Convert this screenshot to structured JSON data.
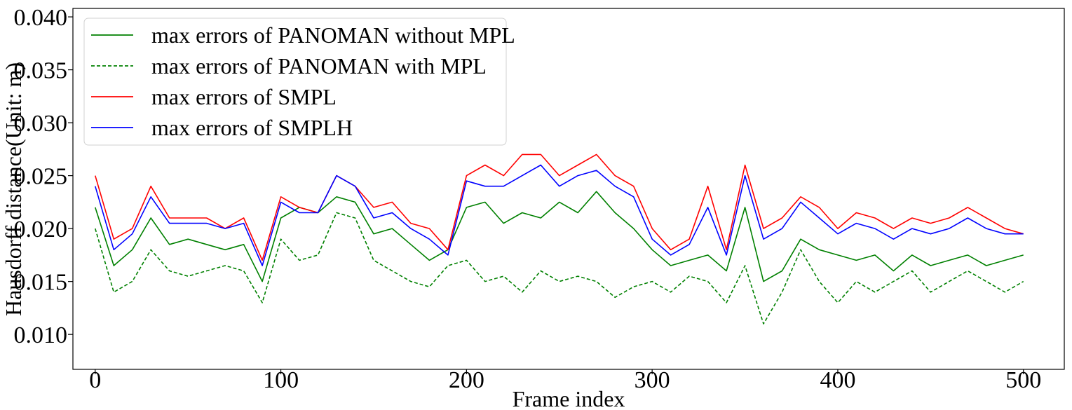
{
  "chart_data": {
    "type": "line",
    "title": "",
    "xlabel": "Frame index",
    "ylabel": "Hausdorff distance(Unit: m)",
    "xlim": [
      -12,
      522
    ],
    "ylim": [
      0.0067,
      0.0408
    ],
    "xticks": [
      0,
      100,
      200,
      300,
      400,
      500
    ],
    "xtick_labels": [
      "0",
      "100",
      "200",
      "300",
      "400",
      "500"
    ],
    "yticks": [
      0.01,
      0.015,
      0.02,
      0.025,
      0.03,
      0.035,
      0.04
    ],
    "ytick_labels": [
      "0.010",
      "0.015",
      "0.020",
      "0.025",
      "0.030",
      "0.035",
      "0.040"
    ],
    "grid": false,
    "legend_position": "upper-left",
    "legend": [
      "max errors of PANOMAN without MPL",
      "max errors of PANOMAN with MPL",
      "max errors of SMPL",
      "max errors of SMPLH"
    ],
    "series": [
      {
        "name": "max errors of PANOMAN without MPL",
        "color": "#008000",
        "style": "solid",
        "x": [
          0,
          10,
          20,
          30,
          40,
          50,
          60,
          70,
          80,
          90,
          100,
          110,
          120,
          130,
          140,
          150,
          160,
          170,
          180,
          190,
          200,
          210,
          220,
          230,
          240,
          250,
          260,
          270,
          280,
          290,
          300,
          310,
          320,
          330,
          340,
          350,
          360,
          370,
          380,
          390,
          400,
          410,
          420,
          430,
          440,
          450,
          460,
          470,
          480,
          490,
          500
        ],
        "values": [
          0.022,
          0.0165,
          0.018,
          0.021,
          0.0185,
          0.019,
          0.0185,
          0.018,
          0.0185,
          0.015,
          0.021,
          0.022,
          0.0215,
          0.023,
          0.0225,
          0.0195,
          0.02,
          0.0185,
          0.017,
          0.018,
          0.022,
          0.0225,
          0.0205,
          0.0215,
          0.021,
          0.0225,
          0.0215,
          0.0235,
          0.0215,
          0.02,
          0.018,
          0.0165,
          0.017,
          0.0175,
          0.016,
          0.022,
          0.015,
          0.016,
          0.019,
          0.018,
          0.0175,
          0.017,
          0.0175,
          0.016,
          0.0175,
          0.0165,
          0.017,
          0.0175,
          0.0165,
          0.017,
          0.0175
        ]
      },
      {
        "name": "max errors of PANOMAN with MPL",
        "color": "#008000",
        "style": "dashed",
        "x": [
          0,
          10,
          20,
          30,
          40,
          50,
          60,
          70,
          80,
          90,
          100,
          110,
          120,
          130,
          140,
          150,
          160,
          170,
          180,
          190,
          200,
          210,
          220,
          230,
          240,
          250,
          260,
          270,
          280,
          290,
          300,
          310,
          320,
          330,
          340,
          350,
          360,
          370,
          380,
          390,
          400,
          410,
          420,
          430,
          440,
          450,
          460,
          470,
          480,
          490,
          500
        ],
        "values": [
          0.02,
          0.014,
          0.015,
          0.018,
          0.016,
          0.0155,
          0.016,
          0.0165,
          0.016,
          0.013,
          0.019,
          0.017,
          0.0175,
          0.0215,
          0.021,
          0.017,
          0.016,
          0.015,
          0.0145,
          0.0165,
          0.017,
          0.015,
          0.0155,
          0.014,
          0.016,
          0.015,
          0.0155,
          0.015,
          0.0135,
          0.0145,
          0.015,
          0.014,
          0.0155,
          0.015,
          0.013,
          0.0165,
          0.011,
          0.014,
          0.018,
          0.015,
          0.013,
          0.015,
          0.014,
          0.015,
          0.016,
          0.014,
          0.015,
          0.016,
          0.015,
          0.014,
          0.015
        ]
      },
      {
        "name": "max errors of SMPL",
        "color": "#ff0000",
        "style": "solid",
        "x": [
          0,
          10,
          20,
          30,
          40,
          50,
          60,
          70,
          80,
          90,
          100,
          110,
          120,
          130,
          140,
          150,
          160,
          170,
          180,
          190,
          200,
          210,
          220,
          230,
          240,
          250,
          260,
          270,
          280,
          290,
          300,
          310,
          320,
          330,
          340,
          350,
          360,
          370,
          380,
          390,
          400,
          410,
          420,
          430,
          440,
          450,
          460,
          470,
          480,
          490,
          500
        ],
        "values": [
          0.025,
          0.019,
          0.02,
          0.024,
          0.021,
          0.021,
          0.021,
          0.02,
          0.021,
          0.017,
          0.023,
          0.022,
          0.0215,
          0.025,
          0.024,
          0.022,
          0.0225,
          0.0205,
          0.02,
          0.018,
          0.025,
          0.026,
          0.025,
          0.027,
          0.027,
          0.025,
          0.026,
          0.027,
          0.025,
          0.024,
          0.02,
          0.018,
          0.019,
          0.024,
          0.018,
          0.026,
          0.02,
          0.021,
          0.023,
          0.022,
          0.02,
          0.0215,
          0.021,
          0.02,
          0.021,
          0.0205,
          0.021,
          0.022,
          0.021,
          0.02,
          0.0195
        ]
      },
      {
        "name": "max errors of SMPLH",
        "color": "#0000ff",
        "style": "solid",
        "x": [
          0,
          10,
          20,
          30,
          40,
          50,
          60,
          70,
          80,
          90,
          100,
          110,
          120,
          130,
          140,
          150,
          160,
          170,
          180,
          190,
          200,
          210,
          220,
          230,
          240,
          250,
          260,
          270,
          280,
          290,
          300,
          310,
          320,
          330,
          340,
          350,
          360,
          370,
          380,
          390,
          400,
          410,
          420,
          430,
          440,
          450,
          460,
          470,
          480,
          490,
          500
        ],
        "values": [
          0.024,
          0.018,
          0.0195,
          0.023,
          0.0205,
          0.0205,
          0.0205,
          0.02,
          0.0205,
          0.0165,
          0.0225,
          0.0215,
          0.0215,
          0.025,
          0.024,
          0.021,
          0.0215,
          0.02,
          0.019,
          0.0175,
          0.0245,
          0.024,
          0.024,
          0.025,
          0.026,
          0.024,
          0.025,
          0.0255,
          0.024,
          0.023,
          0.019,
          0.0175,
          0.0185,
          0.022,
          0.0175,
          0.025,
          0.019,
          0.02,
          0.0225,
          0.021,
          0.0195,
          0.0205,
          0.02,
          0.019,
          0.02,
          0.0195,
          0.02,
          0.021,
          0.02,
          0.0195,
          0.0195
        ]
      }
    ]
  }
}
